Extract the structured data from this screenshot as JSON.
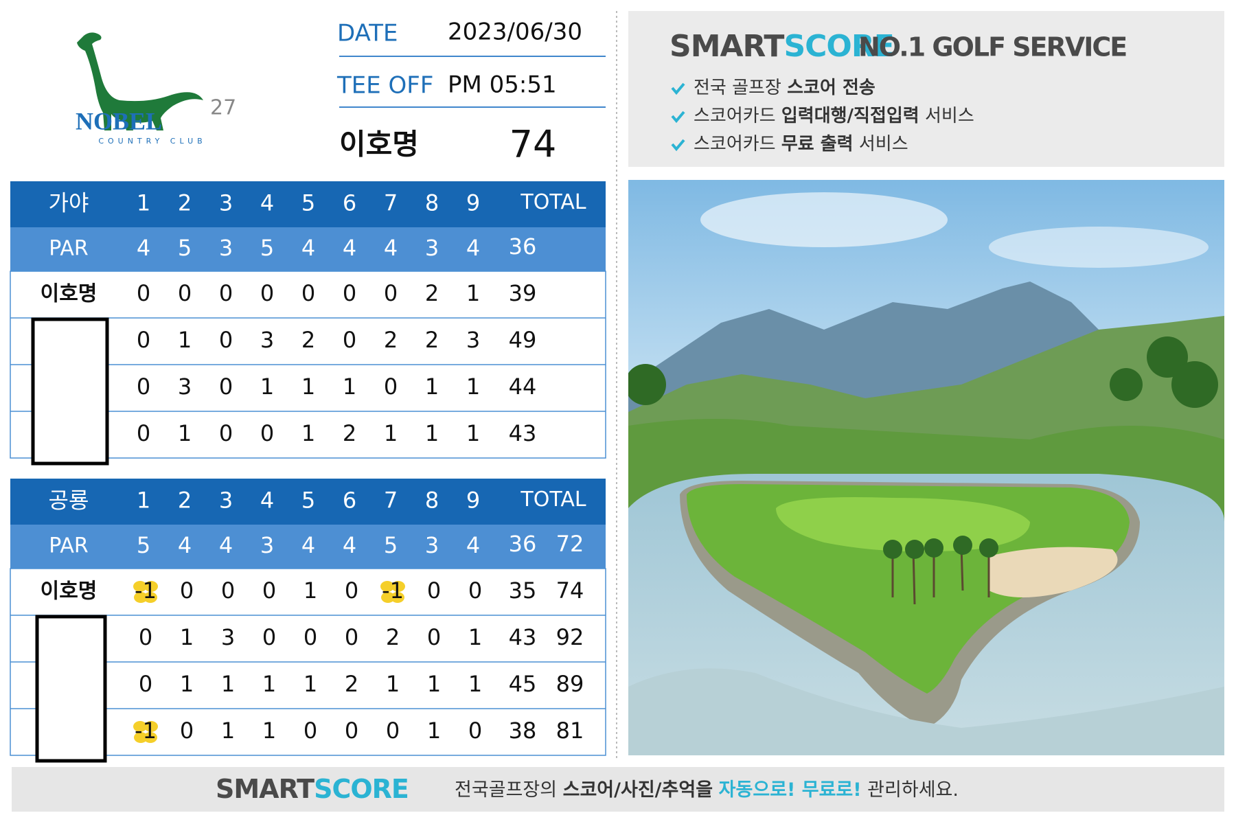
{
  "logo": {
    "name": "NOBEL",
    "number": "27",
    "subtitle": "COUNTRY CLUB"
  },
  "info": {
    "date_label": "DATE",
    "date": "2023/06/30",
    "tee_off_label": "TEE OFF",
    "tee_off": "PM 05:51",
    "player": "이호명",
    "score": 74
  },
  "tables": [
    {
      "course": "가야",
      "holes": [
        1,
        2,
        3,
        4,
        5,
        6,
        7,
        8,
        9
      ],
      "total_label": "TOTAL",
      "par_label": "PAR",
      "par": [
        4,
        5,
        3,
        5,
        4,
        4,
        4,
        3,
        4
      ],
      "par_total": 36,
      "rows": [
        {
          "name": "이호명",
          "scores": [
            0,
            0,
            0,
            0,
            0,
            0,
            0,
            2,
            1
          ],
          "total": 39
        },
        {
          "scores": [
            0,
            1,
            0,
            3,
            2,
            0,
            2,
            2,
            3
          ],
          "total": 49
        },
        {
          "scores": [
            0,
            3,
            0,
            1,
            1,
            1,
            0,
            1,
            1
          ],
          "total": 44
        },
        {
          "scores": [
            0,
            1,
            0,
            0,
            1,
            2,
            1,
            1,
            1
          ],
          "total": 43
        }
      ]
    },
    {
      "course": "공룡",
      "holes": [
        1,
        2,
        3,
        4,
        5,
        6,
        7,
        8,
        9
      ],
      "total_label": "TOTAL",
      "par_label": "PAR",
      "par": [
        5,
        4,
        4,
        3,
        4,
        4,
        5,
        3,
        4
      ],
      "par_total": 36,
      "par_grand_total": 72,
      "rows": [
        {
          "name": "이호명",
          "scores": [
            -1,
            0,
            0,
            0,
            1,
            0,
            -1,
            0,
            0
          ],
          "total": 35,
          "grand_total": 74
        },
        {
          "scores": [
            0,
            1,
            3,
            0,
            0,
            0,
            2,
            0,
            1
          ],
          "total": 43,
          "grand_total": 92
        },
        {
          "scores": [
            0,
            1,
            1,
            1,
            1,
            2,
            1,
            1,
            1
          ],
          "total": 45,
          "grand_total": 89
        },
        {
          "scores": [
            -1,
            0,
            1,
            1,
            0,
            0,
            0,
            1,
            0
          ],
          "total": 38,
          "grand_total": 81
        }
      ]
    }
  ],
  "ad": {
    "brand_smart": "SMART",
    "brand_score": "SCORE",
    "tagline": "NO.1 GOLF SERVICE",
    "items": [
      [
        {
          "text": "전국 골프장 "
        },
        {
          "text": "스코어 전송",
          "style": "bold"
        }
      ],
      [
        {
          "text": "스코어카드 "
        },
        {
          "text": "입력대행/직접입력",
          "style": "bold"
        },
        {
          "text": " 서비스"
        }
      ],
      [
        {
          "text": "스코어카드 "
        },
        {
          "text": "무료 출력",
          "style": "bold"
        },
        {
          "text": " 서비스"
        }
      ]
    ]
  },
  "footer": {
    "brand_smart": "SMART",
    "brand_score": "SCORE",
    "message": [
      {
        "text": "전국골프장의 "
      },
      {
        "text": "스코어/사진/추억을",
        "style": "bold"
      },
      {
        "text": " "
      },
      {
        "text": "자동으로! 무료로!",
        "style": "accent"
      },
      {
        "text": " 관리하세요."
      }
    ]
  }
}
